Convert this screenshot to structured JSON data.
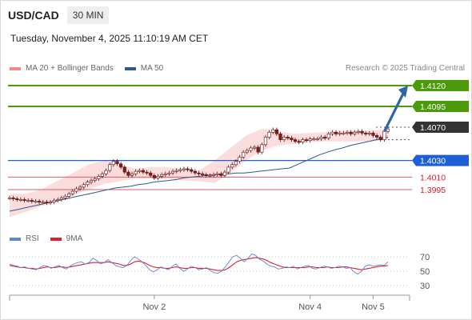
{
  "header": {
    "symbol": "USD/CAD",
    "timeframe": "30 MIN",
    "datetime": "Tuesday, November 4, 2025 11:10:19 AM CET"
  },
  "legend": {
    "bb_label": "MA 20 + Bollinger Bands",
    "ma50_label": "MA 50",
    "credit": "Research © 2025 Trading Central"
  },
  "rsi_legend": {
    "rsi_label": "RSI",
    "ma_label": "9MA"
  },
  "colors": {
    "resistance": "#4a9a0a",
    "current": "#333333",
    "support_blue": "#1f5fd6",
    "support_red": "#e05a6a",
    "bb_fill": "#fbd7d7",
    "ma50": "#2e5a8c",
    "arrow": "#2e66a6",
    "rsi": "#5b86d6",
    "rsi_ma": "#e0202a",
    "bull": "#ffffff",
    "bear": "#8a1a1a"
  },
  "chart_data": {
    "type": "candlestick",
    "price_axis": {
      "min": 1.395,
      "max": 1.413
    },
    "levels": [
      {
        "value": 1.412,
        "label": "1.4120",
        "kind": "resistance"
      },
      {
        "value": 1.4095,
        "label": "1.4095",
        "kind": "resistance"
      },
      {
        "value": 1.407,
        "label": "1.4070",
        "kind": "current"
      },
      {
        "value": 1.403,
        "label": "1.4030",
        "kind": "pivot"
      },
      {
        "value": 1.401,
        "label": "1.4010",
        "kind": "support"
      },
      {
        "value": 1.3995,
        "label": "1.3995",
        "kind": "support"
      }
    ],
    "close_path": [
      1.3985,
      1.3984,
      1.3983,
      1.3983,
      1.3982,
      1.3982,
      1.3981,
      1.3981,
      1.398,
      1.398,
      1.3979,
      1.398,
      1.3982,
      1.3983,
      1.3985,
      1.3987,
      1.399,
      1.3993,
      1.3996,
      1.3998,
      1.4001,
      1.4004,
      1.4006,
      1.4008,
      1.4011,
      1.4014,
      1.4018,
      1.4025,
      1.4029,
      1.4026,
      1.4022,
      1.4016,
      1.4012,
      1.4014,
      1.4017,
      1.4018,
      1.4016,
      1.4015,
      1.4012,
      1.4009,
      1.4011,
      1.4013,
      1.4014,
      1.4015,
      1.4017,
      1.4018,
      1.4019,
      1.402,
      1.4019,
      1.4017,
      1.4015,
      1.4014,
      1.4013,
      1.4012,
      1.4012,
      1.4013,
      1.4014,
      1.4012,
      1.4016,
      1.4022,
      1.4025,
      1.4029,
      1.4034,
      1.404,
      1.4042,
      1.4045,
      1.4046,
      1.404,
      1.4049,
      1.4058,
      1.4064,
      1.4067,
      1.4062,
      1.4055,
      1.4058,
      1.4057,
      1.4055,
      1.4053,
      1.4052,
      1.4055,
      1.4054,
      1.4056,
      1.4056,
      1.4056,
      1.4058,
      1.4057,
      1.4062,
      1.4064,
      1.4062,
      1.4063,
      1.4063,
      1.4064,
      1.4062,
      1.4064,
      1.4065,
      1.4063,
      1.4062,
      1.4063,
      1.406,
      1.4058,
      1.4055,
      1.4065,
      1.4068
    ],
    "ma50_path": [
      1.3969,
      1.3971,
      1.3973,
      1.3975,
      1.3977,
      1.3979,
      1.3981,
      1.3983,
      1.3985,
      1.3987,
      1.3989,
      1.3991,
      1.3993,
      1.3995,
      1.3997,
      1.3998,
      1.3999,
      1.4001,
      1.4002,
      1.4004,
      1.4005,
      1.4006,
      1.4007,
      1.4009,
      1.401,
      1.4011,
      1.4012,
      1.4013,
      1.4014,
      1.4014,
      1.4015,
      1.4015,
      1.4016,
      1.4017,
      1.4018,
      1.4019,
      1.402,
      1.4021,
      1.4025,
      1.4029,
      1.4033,
      1.4037,
      1.404,
      1.4043,
      1.4045,
      1.4048,
      1.405,
      1.4052,
      1.4054,
      1.4056,
      1.4058
    ],
    "bb_upper": [
      1.399,
      1.399,
      1.3995,
      1.4005,
      1.4015,
      1.4025,
      1.403,
      1.4025,
      1.402,
      1.4022,
      1.4022,
      1.402,
      1.4018,
      1.403,
      1.4045,
      1.406,
      1.4068,
      1.4065,
      1.4062,
      1.4063,
      1.4064,
      1.4066,
      1.4066,
      1.4066,
      1.4068
    ],
    "bb_lower": [
      1.3962,
      1.3968,
      1.3975,
      1.398,
      1.3988,
      1.3995,
      1.4002,
      1.4005,
      1.4008,
      1.4008,
      1.4008,
      1.4006,
      1.4005,
      1.4003,
      1.4015,
      1.403,
      1.4042,
      1.4048,
      1.405,
      1.4052,
      1.4053,
      1.4053,
      1.4053,
      1.4053,
      1.4055
    ],
    "projection": {
      "from": 1.4066,
      "to": 1.412
    },
    "x_ticks": [
      {
        "label": "Nov 2",
        "index": 39
      },
      {
        "label": "Nov 4",
        "index": 81
      },
      {
        "label": "Nov 5",
        "index": 98
      }
    ],
    "rsi": {
      "axis": {
        "min": 20,
        "max": 80
      },
      "ticks": [
        70,
        50,
        30
      ],
      "rsi_values": [
        60,
        58,
        57,
        55,
        56,
        54,
        53,
        52,
        55,
        58,
        57,
        54,
        56,
        58,
        55,
        53,
        57,
        60,
        62,
        63,
        60,
        62,
        68,
        65,
        60,
        62,
        66,
        62,
        58,
        56,
        55,
        58,
        65,
        70,
        67,
        63,
        58,
        52,
        49,
        52,
        56,
        54,
        52,
        57,
        60,
        54,
        50,
        53,
        57,
        55,
        52,
        53,
        55,
        51,
        48,
        47,
        50,
        56,
        63,
        70,
        72,
        68,
        63,
        68,
        74,
        72,
        67,
        64,
        60,
        57,
        56,
        53,
        54,
        56,
        55,
        57,
        53,
        55,
        57,
        58,
        54,
        53,
        55,
        57,
        56,
        54,
        55,
        57,
        56,
        54,
        55,
        49,
        46,
        50,
        57,
        59,
        57,
        58,
        59,
        58,
        63
      ],
      "ma_values": [
        58,
        57,
        56,
        55,
        55,
        54,
        54,
        53,
        54,
        55,
        56,
        55,
        55,
        56,
        56,
        55,
        56,
        57,
        58,
        59,
        60,
        61,
        62,
        62,
        62,
        62,
        63,
        62,
        61,
        60,
        58,
        58,
        60,
        63,
        64,
        63,
        61,
        58,
        56,
        55,
        55,
        54,
        54,
        55,
        56,
        55,
        54,
        54,
        55,
        55,
        54,
        54,
        54,
        53,
        52,
        51,
        51,
        52,
        55,
        59,
        63,
        65,
        66,
        67,
        68,
        69,
        68,
        67,
        65,
        62,
        60,
        58,
        56,
        55,
        55,
        55,
        55,
        55,
        55,
        56,
        56,
        55,
        55,
        55,
        56,
        55,
        55,
        55,
        56,
        56,
        55,
        54,
        53,
        52,
        53,
        54,
        55,
        56,
        57,
        57,
        58
      ]
    }
  }
}
